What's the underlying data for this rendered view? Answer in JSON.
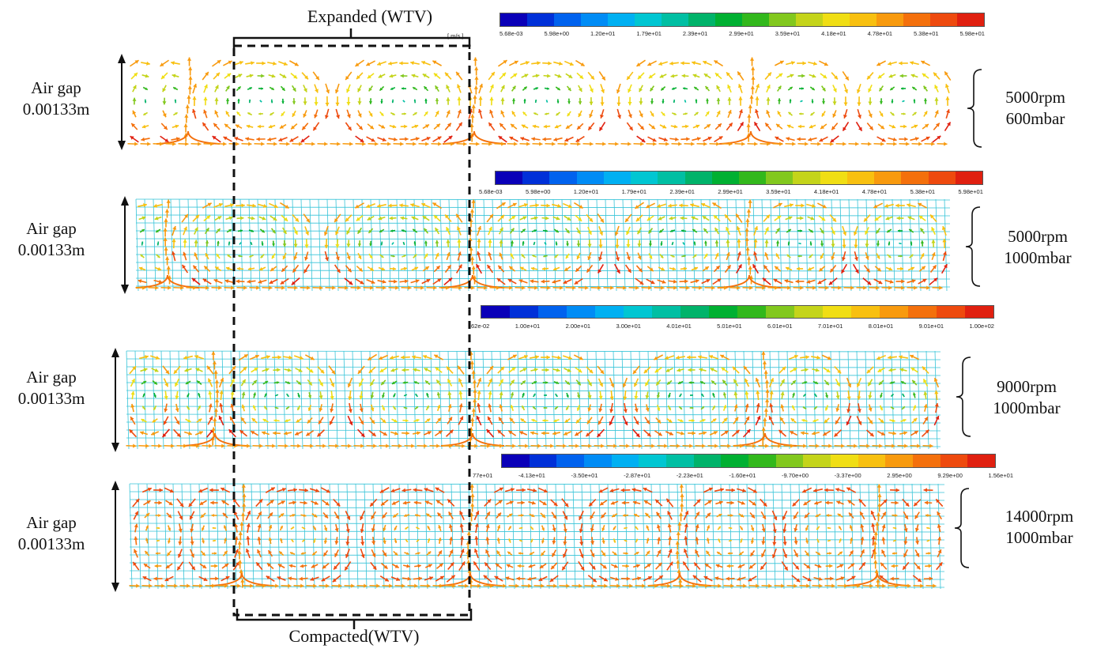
{
  "labels": {
    "expanded": "Expanded (WTV)",
    "compacted": "Compacted(WTV)"
  },
  "colormap": [
    "#0a00b8",
    "#0030d8",
    "#0062ee",
    "#008cf5",
    "#00b0f2",
    "#00c6d2",
    "#00bfa3",
    "#00b36a",
    "#00b032",
    "#32b81c",
    "#82c81e",
    "#c4d41a",
    "#f0de14",
    "#f8c010",
    "#f89a0e",
    "#f4700c",
    "#ee4a0e",
    "#e02010"
  ],
  "colors": {
    "grid": "#38c4d8",
    "frame": "#111111",
    "background": "#ffffff"
  },
  "panels": [
    {
      "gap_line1": "Air gap",
      "gap_line2": "0.00133m",
      "cond_line1": "5000rpm",
      "cond_line2": "600mbar",
      "mesh": false,
      "colorbar": {
        "unit": "[ m/s ]",
        "ticks": [
          "5.68e-03",
          "5.98e+00",
          "1.20e+01",
          "1.79e+01",
          "2.39e+01",
          "2.99e+01",
          "3.59e+01",
          "4.18e+01",
          "4.78e+01",
          "5.38e+01",
          "5.98e+01"
        ]
      }
    },
    {
      "gap_line1": "Air gap",
      "gap_line2": "0.00133m",
      "cond_line1": "5000rpm",
      "cond_line2": "1000mbar",
      "mesh": true,
      "colorbar": {
        "unit": "",
        "ticks": [
          "5.68e-03",
          "5.98e+00",
          "1.20e+01",
          "1.79e+01",
          "2.39e+01",
          "2.99e+01",
          "3.59e+01",
          "4.18e+01",
          "4.78e+01",
          "5.38e+01",
          "5.98e+01"
        ]
      }
    },
    {
      "gap_line1": "Air gap",
      "gap_line2": "0.00133m",
      "cond_line1": "9000rpm",
      "cond_line2": "1000mbar",
      "mesh": true,
      "colorbar": {
        "unit": "",
        "ticks": [
          "62e-02",
          "1.00e+01",
          "2.00e+01",
          "3.00e+01",
          "4.01e+01",
          "5.01e+01",
          "6.01e+01",
          "7.01e+01",
          "8.01e+01",
          "9.01e+01",
          "1.00e+02"
        ]
      }
    },
    {
      "gap_line1": "Air gap",
      "gap_line2": "0.00133m",
      "cond_line1": "14000rpm",
      "cond_line2": "1000mbar",
      "mesh": true,
      "colorbar": {
        "unit": "",
        "ticks": [
          "77e+01",
          "-4.13e+01",
          "-3.50e+01",
          "-2.87e+01",
          "-2.23e+01",
          "-1.60e+01",
          "-9.70e+00",
          "-3.37e+00",
          "2.95e+00",
          "9.29e+00",
          "1.56e+01"
        ]
      }
    }
  ]
}
